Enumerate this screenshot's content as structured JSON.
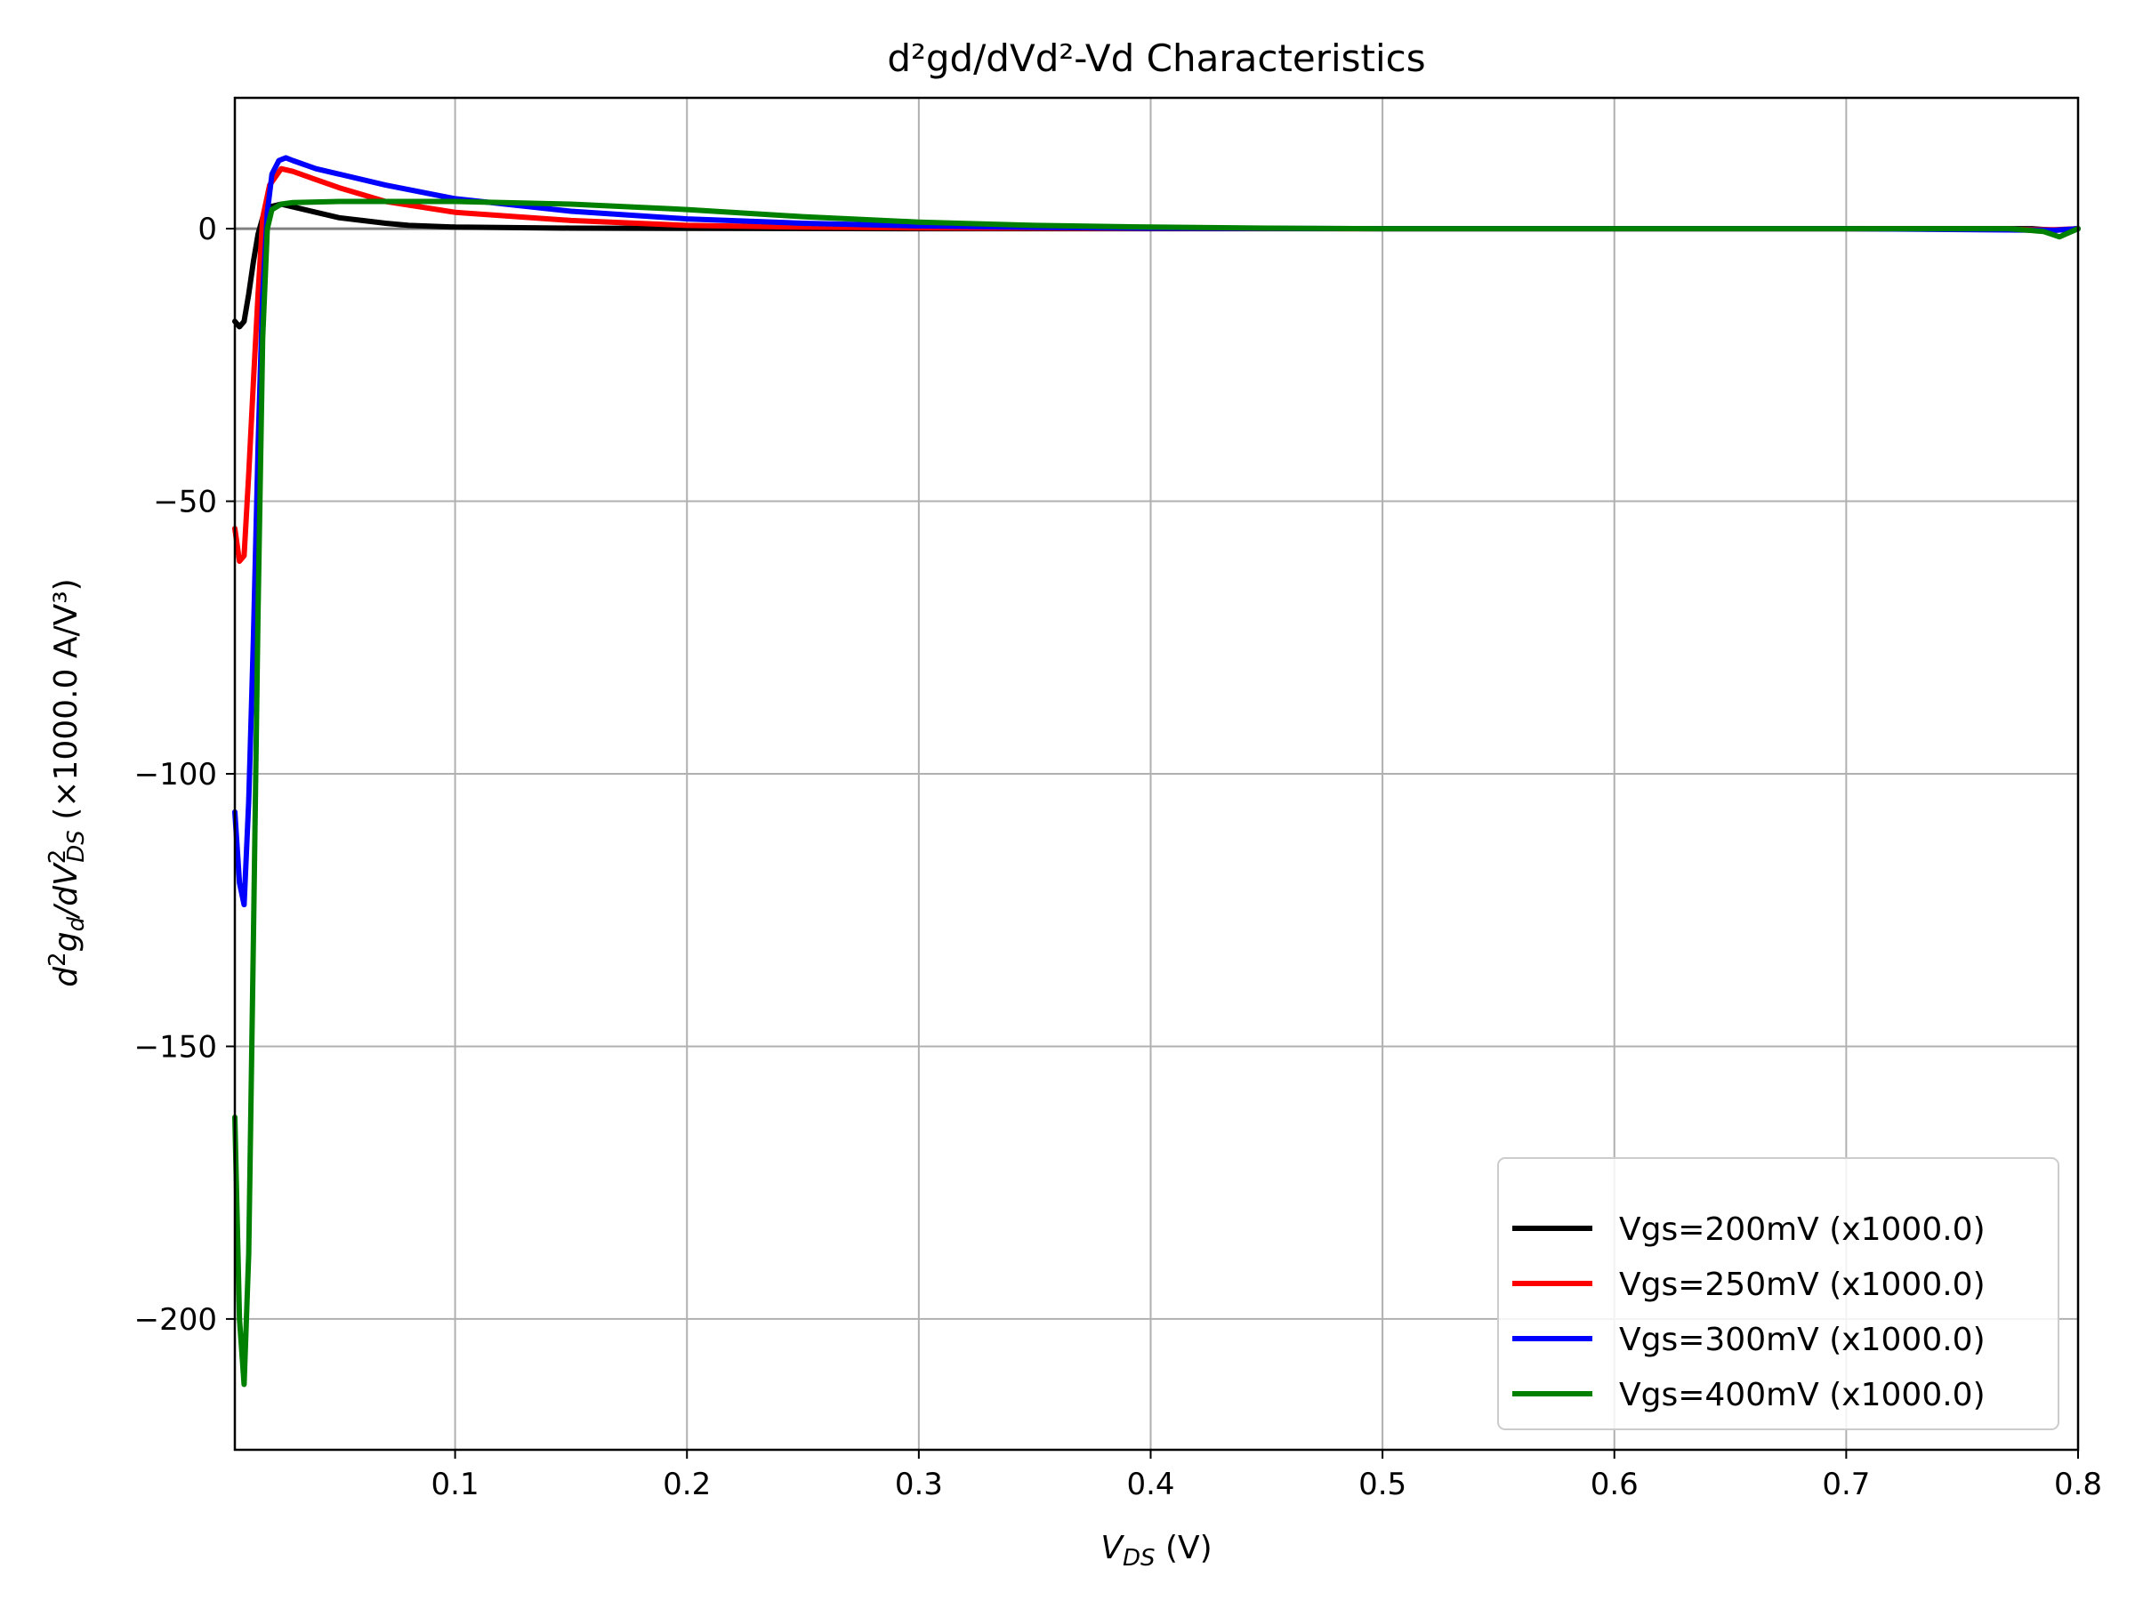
{
  "chart_data": {
    "type": "line",
    "title": "d²gd/dVd²-Vd Characteristics",
    "xlabel": {
      "base": "V",
      "sub": "DS",
      "unit": " (V)"
    },
    "ylabel": {
      "prefix": "d",
      "sup1": "2",
      "g": "g",
      "gsub": "d",
      "slash": "/dV",
      "vsup": "2",
      "vsub": "DS",
      "suffix": " (×1000.0 A/V³)"
    },
    "xlim": [
      0.005,
      0.8
    ],
    "ylim": [
      -224,
      24
    ],
    "xticks": [
      0.1,
      0.2,
      0.3,
      0.4,
      0.5,
      0.6,
      0.7,
      0.8
    ],
    "xtick_labels": [
      "0.1",
      "0.2",
      "0.3",
      "0.4",
      "0.5",
      "0.6",
      "0.7",
      "0.8"
    ],
    "yticks": [
      0,
      -50,
      -100,
      -150,
      -200
    ],
    "ytick_labels": [
      "0",
      "−50",
      "−100",
      "−150",
      "−200"
    ],
    "grid": true,
    "zero_line": true,
    "legend_position": "lower-right",
    "series": [
      {
        "name": "Vgs=200mV (x1000.0)",
        "color": "#000000",
        "points": [
          [
            0.005,
            -17
          ],
          [
            0.007,
            -18
          ],
          [
            0.009,
            -17
          ],
          [
            0.011,
            -12
          ],
          [
            0.013,
            -6
          ],
          [
            0.015,
            -1
          ],
          [
            0.017,
            2
          ],
          [
            0.02,
            4
          ],
          [
            0.025,
            4.5
          ],
          [
            0.03,
            4
          ],
          [
            0.04,
            3
          ],
          [
            0.05,
            2
          ],
          [
            0.06,
            1.5
          ],
          [
            0.07,
            1
          ],
          [
            0.08,
            0.6
          ],
          [
            0.1,
            0.3
          ],
          [
            0.15,
            0.1
          ],
          [
            0.2,
            0.05
          ],
          [
            0.3,
            0
          ],
          [
            0.5,
            0
          ],
          [
            0.7,
            0
          ],
          [
            0.78,
            0
          ],
          [
            0.79,
            -0.3
          ],
          [
            0.8,
            0
          ]
        ]
      },
      {
        "name": "Vgs=250mV (x1000.0)",
        "color": "#ff0000",
        "points": [
          [
            0.005,
            -55
          ],
          [
            0.007,
            -61
          ],
          [
            0.009,
            -60
          ],
          [
            0.011,
            -45
          ],
          [
            0.013,
            -28
          ],
          [
            0.015,
            -12
          ],
          [
            0.017,
            2
          ],
          [
            0.02,
            8
          ],
          [
            0.025,
            11
          ],
          [
            0.03,
            10.5
          ],
          [
            0.04,
            9
          ],
          [
            0.05,
            7.5
          ],
          [
            0.07,
            5
          ],
          [
            0.1,
            3
          ],
          [
            0.15,
            1.5
          ],
          [
            0.2,
            0.6
          ],
          [
            0.25,
            0.3
          ],
          [
            0.3,
            0.15
          ],
          [
            0.4,
            0.05
          ],
          [
            0.5,
            0
          ],
          [
            0.7,
            0
          ],
          [
            0.79,
            -0.2
          ],
          [
            0.8,
            0
          ]
        ]
      },
      {
        "name": "Vgs=300mV (x1000.0)",
        "color": "#0000ff",
        "points": [
          [
            0.005,
            -107
          ],
          [
            0.007,
            -120
          ],
          [
            0.009,
            -124
          ],
          [
            0.011,
            -105
          ],
          [
            0.013,
            -75
          ],
          [
            0.015,
            -40
          ],
          [
            0.017,
            -12
          ],
          [
            0.019,
            3
          ],
          [
            0.021,
            10
          ],
          [
            0.024,
            12.5
          ],
          [
            0.027,
            13
          ],
          [
            0.03,
            12.5
          ],
          [
            0.04,
            11
          ],
          [
            0.05,
            10
          ],
          [
            0.07,
            8
          ],
          [
            0.1,
            5.5
          ],
          [
            0.15,
            3.2
          ],
          [
            0.2,
            1.8
          ],
          [
            0.25,
            1
          ],
          [
            0.3,
            0.5
          ],
          [
            0.35,
            0.25
          ],
          [
            0.4,
            0.1
          ],
          [
            0.5,
            0
          ],
          [
            0.7,
            0
          ],
          [
            0.79,
            -0.3
          ],
          [
            0.8,
            0
          ]
        ]
      },
      {
        "name": "Vgs=400mV (x1000.0)",
        "color": "#008000",
        "points": [
          [
            0.005,
            -163
          ],
          [
            0.007,
            -200
          ],
          [
            0.009,
            -212
          ],
          [
            0.011,
            -188
          ],
          [
            0.013,
            -130
          ],
          [
            0.015,
            -70
          ],
          [
            0.017,
            -20
          ],
          [
            0.019,
            0
          ],
          [
            0.021,
            3.5
          ],
          [
            0.025,
            4.5
          ],
          [
            0.03,
            4.8
          ],
          [
            0.05,
            5
          ],
          [
            0.1,
            5
          ],
          [
            0.15,
            4.5
          ],
          [
            0.2,
            3.5
          ],
          [
            0.25,
            2.2
          ],
          [
            0.3,
            1.2
          ],
          [
            0.35,
            0.6
          ],
          [
            0.4,
            0.3
          ],
          [
            0.45,
            0.1
          ],
          [
            0.5,
            0
          ],
          [
            0.6,
            0
          ],
          [
            0.7,
            0
          ],
          [
            0.77,
            0
          ],
          [
            0.785,
            -0.5
          ],
          [
            0.792,
            -1.5
          ],
          [
            0.8,
            0
          ]
        ]
      }
    ]
  }
}
